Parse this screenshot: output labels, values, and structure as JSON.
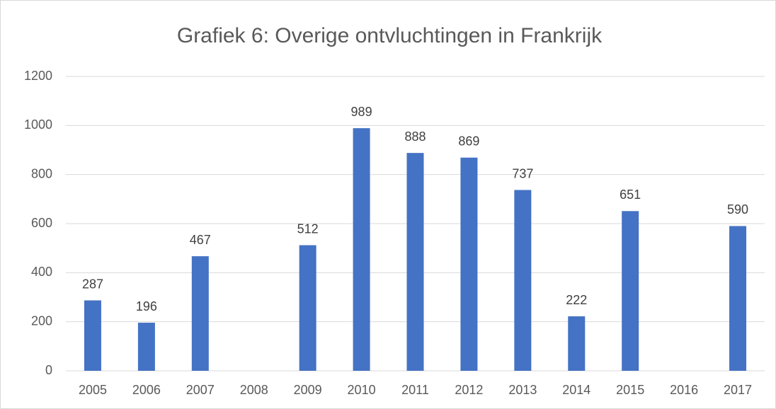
{
  "chart_data": {
    "type": "bar",
    "title": "Grafiek 6: Overige ontvluchtingen in Frankrijk",
    "categories": [
      "2005",
      "2006",
      "2007",
      "2008",
      "2009",
      "2010",
      "2011",
      "2012",
      "2013",
      "2014",
      "2015",
      "2016",
      "2017"
    ],
    "values": [
      287,
      196,
      467,
      null,
      512,
      989,
      888,
      869,
      737,
      222,
      651,
      null,
      590
    ],
    "color": "#4472c4",
    "ylim": [
      0,
      1200
    ],
    "yticks": [
      0,
      200,
      400,
      600,
      800,
      1000,
      1200
    ],
    "grid": true
  }
}
